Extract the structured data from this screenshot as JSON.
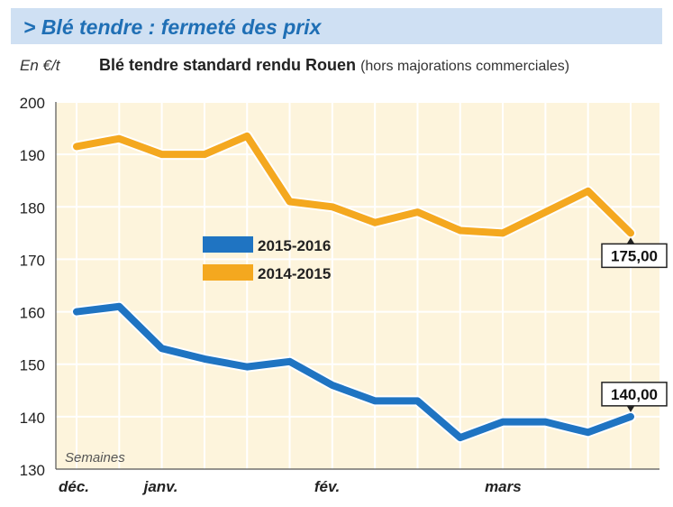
{
  "header": {
    "title": "> Blé tendre : fermeté des prix"
  },
  "chart_data": {
    "type": "line",
    "title": "Blé tendre standard rendu Rouen",
    "subtitle": "(hors majorations commerciales)",
    "ylabel": "En €/t",
    "xlabel": "Semaines",
    "ylim": [
      130,
      200
    ],
    "yticks": [
      130,
      140,
      150,
      160,
      170,
      180,
      190,
      200
    ],
    "x_tick_labels": [
      {
        "label": "déc.",
        "index": 0
      },
      {
        "label": "janv.",
        "index": 2
      },
      {
        "label": "fév.",
        "index": 6
      },
      {
        "label": "mars",
        "index": 10
      }
    ],
    "num_points": 14,
    "grid": true,
    "legend_position": "center-left",
    "series": [
      {
        "name": "2015-2016",
        "color": "#1f74c2",
        "values": [
          160,
          161,
          153,
          151,
          149.5,
          150.5,
          146,
          143,
          143,
          136,
          139,
          139,
          137,
          140
        ],
        "end_label": "140,00"
      },
      {
        "name": "2014-2015",
        "color": "#f4a81f",
        "values": [
          191.5,
          193,
          190,
          190,
          193.5,
          181,
          180,
          177,
          179,
          175.5,
          175,
          179,
          183,
          175
        ],
        "end_label": "175,00"
      }
    ]
  }
}
